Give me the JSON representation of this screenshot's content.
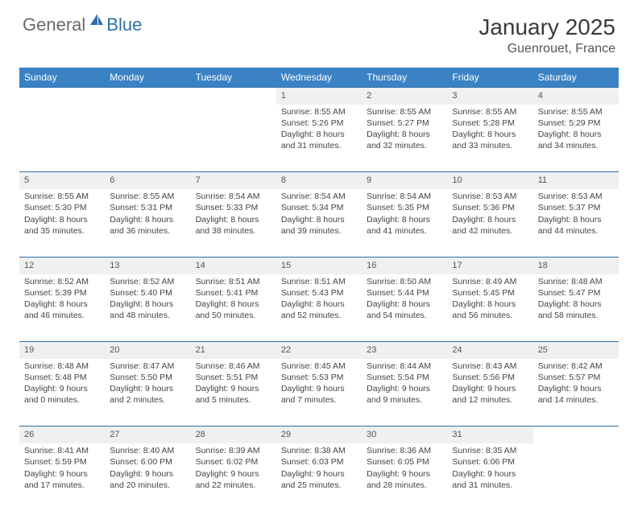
{
  "brand": {
    "general": "General",
    "blue": "Blue"
  },
  "title": "January 2025",
  "location": "Guenrouet, France",
  "colors": {
    "header_bg": "#3b82c4",
    "header_text": "#ffffff",
    "daynum_bg": "#eef0f2",
    "daynum_border": "#2f6fa8",
    "text": "#444444",
    "logo_gray": "#6b6b6b",
    "logo_blue": "#2f6fa8"
  },
  "day_headers": [
    "Sunday",
    "Monday",
    "Tuesday",
    "Wednesday",
    "Thursday",
    "Friday",
    "Saturday"
  ],
  "weeks": [
    [
      null,
      null,
      null,
      {
        "n": "1",
        "sr": "8:55 AM",
        "ss": "5:26 PM",
        "dl": "8 hours and 31 minutes."
      },
      {
        "n": "2",
        "sr": "8:55 AM",
        "ss": "5:27 PM",
        "dl": "8 hours and 32 minutes."
      },
      {
        "n": "3",
        "sr": "8:55 AM",
        "ss": "5:28 PM",
        "dl": "8 hours and 33 minutes."
      },
      {
        "n": "4",
        "sr": "8:55 AM",
        "ss": "5:29 PM",
        "dl": "8 hours and 34 minutes."
      }
    ],
    [
      {
        "n": "5",
        "sr": "8:55 AM",
        "ss": "5:30 PM",
        "dl": "8 hours and 35 minutes."
      },
      {
        "n": "6",
        "sr": "8:55 AM",
        "ss": "5:31 PM",
        "dl": "8 hours and 36 minutes."
      },
      {
        "n": "7",
        "sr": "8:54 AM",
        "ss": "5:33 PM",
        "dl": "8 hours and 38 minutes."
      },
      {
        "n": "8",
        "sr": "8:54 AM",
        "ss": "5:34 PM",
        "dl": "8 hours and 39 minutes."
      },
      {
        "n": "9",
        "sr": "8:54 AM",
        "ss": "5:35 PM",
        "dl": "8 hours and 41 minutes."
      },
      {
        "n": "10",
        "sr": "8:53 AM",
        "ss": "5:36 PM",
        "dl": "8 hours and 42 minutes."
      },
      {
        "n": "11",
        "sr": "8:53 AM",
        "ss": "5:37 PM",
        "dl": "8 hours and 44 minutes."
      }
    ],
    [
      {
        "n": "12",
        "sr": "8:52 AM",
        "ss": "5:39 PM",
        "dl": "8 hours and 46 minutes."
      },
      {
        "n": "13",
        "sr": "8:52 AM",
        "ss": "5:40 PM",
        "dl": "8 hours and 48 minutes."
      },
      {
        "n": "14",
        "sr": "8:51 AM",
        "ss": "5:41 PM",
        "dl": "8 hours and 50 minutes."
      },
      {
        "n": "15",
        "sr": "8:51 AM",
        "ss": "5:43 PM",
        "dl": "8 hours and 52 minutes."
      },
      {
        "n": "16",
        "sr": "8:50 AM",
        "ss": "5:44 PM",
        "dl": "8 hours and 54 minutes."
      },
      {
        "n": "17",
        "sr": "8:49 AM",
        "ss": "5:45 PM",
        "dl": "8 hours and 56 minutes."
      },
      {
        "n": "18",
        "sr": "8:48 AM",
        "ss": "5:47 PM",
        "dl": "8 hours and 58 minutes."
      }
    ],
    [
      {
        "n": "19",
        "sr": "8:48 AM",
        "ss": "5:48 PM",
        "dl": "9 hours and 0 minutes."
      },
      {
        "n": "20",
        "sr": "8:47 AM",
        "ss": "5:50 PM",
        "dl": "9 hours and 2 minutes."
      },
      {
        "n": "21",
        "sr": "8:46 AM",
        "ss": "5:51 PM",
        "dl": "9 hours and 5 minutes."
      },
      {
        "n": "22",
        "sr": "8:45 AM",
        "ss": "5:53 PM",
        "dl": "9 hours and 7 minutes."
      },
      {
        "n": "23",
        "sr": "8:44 AM",
        "ss": "5:54 PM",
        "dl": "9 hours and 9 minutes."
      },
      {
        "n": "24",
        "sr": "8:43 AM",
        "ss": "5:56 PM",
        "dl": "9 hours and 12 minutes."
      },
      {
        "n": "25",
        "sr": "8:42 AM",
        "ss": "5:57 PM",
        "dl": "9 hours and 14 minutes."
      }
    ],
    [
      {
        "n": "26",
        "sr": "8:41 AM",
        "ss": "5:59 PM",
        "dl": "9 hours and 17 minutes."
      },
      {
        "n": "27",
        "sr": "8:40 AM",
        "ss": "6:00 PM",
        "dl": "9 hours and 20 minutes."
      },
      {
        "n": "28",
        "sr": "8:39 AM",
        "ss": "6:02 PM",
        "dl": "9 hours and 22 minutes."
      },
      {
        "n": "29",
        "sr": "8:38 AM",
        "ss": "6:03 PM",
        "dl": "9 hours and 25 minutes."
      },
      {
        "n": "30",
        "sr": "8:36 AM",
        "ss": "6:05 PM",
        "dl": "9 hours and 28 minutes."
      },
      {
        "n": "31",
        "sr": "8:35 AM",
        "ss": "6:06 PM",
        "dl": "9 hours and 31 minutes."
      },
      null
    ]
  ],
  "labels": {
    "sunrise": "Sunrise: ",
    "sunset": "Sunset: ",
    "daylight": "Daylight: "
  }
}
